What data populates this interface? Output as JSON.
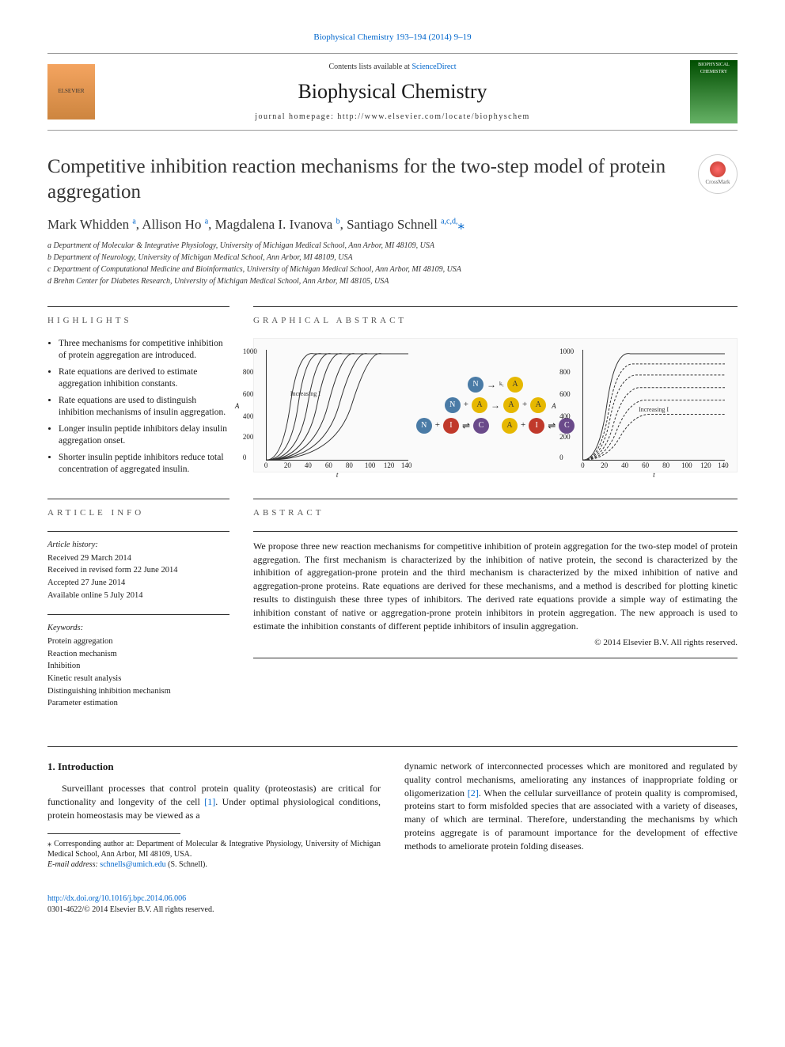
{
  "meta": {
    "top_citation": "Biophysical Chemistry 193–194 (2014) 9–19",
    "contents_prefix": "Contents lists available at ",
    "contents_link": "ScienceDirect",
    "journal_name": "Biophysical Chemistry",
    "homepage_label": "journal homepage: http://www.elsevier.com/locate/biophyschem",
    "elsevier_label": "ELSEVIER",
    "cover_label": "BIOPHYSICAL CHEMISTRY",
    "crossmark_label": "CrossMark"
  },
  "article": {
    "title": "Competitive inhibition reaction mechanisms for the two-step model of protein aggregation",
    "authors_html": "Mark Whidden <sup>a</sup>, Allison Ho <sup>a</sup>, Magdalena I. Ivanova <sup>b</sup>, Santiago Schnell <sup>a,c,d,</sup>",
    "corresponding_marker": "⁎",
    "affiliations": [
      "a Department of Molecular & Integrative Physiology, University of Michigan Medical School, Ann Arbor, MI 48109, USA",
      "b Department of Neurology, University of Michigan Medical School, Ann Arbor, MI 48109, USA",
      "c Department of Computational Medicine and Bioinformatics, University of Michigan Medical School, Ann Arbor, MI 48109, USA",
      "d Brehm Center for Diabetes Research, University of Michigan Medical School, Ann Arbor, MI 48105, USA"
    ]
  },
  "highlights": {
    "heading": "HIGHLIGHTS",
    "items": [
      "Three mechanisms for competitive inhibition of protein aggregation are introduced.",
      "Rate equations are derived to estimate aggregation inhibition constants.",
      "Rate equations are used to distinguish inhibition mechanisms of insulin aggregation.",
      "Longer insulin peptide inhibitors delay insulin aggregation onset.",
      "Shorter insulin peptide inhibitors reduce total concentration of aggregated insulin."
    ]
  },
  "graphical": {
    "heading": "GRAPHICAL ABSTRACT",
    "chart1": {
      "type": "line-sigmoid-family",
      "y_ticks": [
        "0",
        "200",
        "400",
        "600",
        "800",
        "1000"
      ],
      "x_ticks": [
        "0",
        "20",
        "40",
        "60",
        "80",
        "100",
        "120",
        "140"
      ],
      "y_label": "A",
      "x_label": "t",
      "arrow_label": "Increasing I",
      "curve_count": 7,
      "curve_color": "#333333",
      "xlim": [
        0,
        140
      ],
      "ylim": [
        0,
        1000
      ],
      "background_color": "#fafafa"
    },
    "mechanism": {
      "row1": {
        "left": "N",
        "rate": "k₁",
        "right": "A"
      },
      "row2": {
        "seq": [
          "N",
          "+",
          "A",
          "k₂→",
          "A",
          "+",
          "A"
        ]
      },
      "row3a": {
        "seq": [
          "N",
          "+",
          "I",
          "k₃⇌k₋₃",
          "C"
        ]
      },
      "row3b": {
        "seq": [
          "A",
          "+",
          "I",
          "k₄⇌k₋₄",
          "C"
        ]
      },
      "node_colors": {
        "N": "#4a7ba6",
        "A": "#e6b800",
        "I": "#c0392b",
        "C": "#6a4a8a"
      }
    },
    "chart2": {
      "type": "line-sigmoid-family-plateau",
      "y_ticks": [
        "0",
        "200",
        "400",
        "600",
        "800",
        "1000"
      ],
      "x_ticks": [
        "0",
        "20",
        "40",
        "60",
        "80",
        "100",
        "120",
        "140"
      ],
      "y_label": "A",
      "x_label": "t",
      "arrow_label": "Increasing I",
      "curve_count": 6,
      "curve_color": "#333333",
      "xlim": [
        0,
        140
      ],
      "ylim": [
        0,
        1000
      ],
      "background_color": "#fafafa"
    }
  },
  "article_info": {
    "heading": "ARTICLE INFO",
    "history_head": "Article history:",
    "history": [
      "Received 29 March 2014",
      "Received in revised form 22 June 2014",
      "Accepted 27 June 2014",
      "Available online 5 July 2014"
    ],
    "keywords_head": "Keywords:",
    "keywords": [
      "Protein aggregation",
      "Reaction mechanism",
      "Inhibition",
      "Kinetic result analysis",
      "Distinguishing inhibition mechanism",
      "Parameter estimation"
    ]
  },
  "abstract": {
    "heading": "ABSTRACT",
    "text": "We propose three new reaction mechanisms for competitive inhibition of protein aggregation for the two-step model of protein aggregation. The first mechanism is characterized by the inhibition of native protein, the second is characterized by the inhibition of aggregation-prone protein and the third mechanism is characterized by the mixed inhibition of native and aggregation-prone proteins. Rate equations are derived for these mechanisms, and a method is described for plotting kinetic results to distinguish these three types of inhibitors. The derived rate equations provide a simple way of estimating the inhibition constant of native or aggregation-prone protein inhibitors in protein aggregation. The new approach is used to estimate the inhibition constants of different peptide inhibitors of insulin aggregation.",
    "copyright": "© 2014 Elsevier B.V. All rights reserved."
  },
  "body": {
    "intro_heading": "1. Introduction",
    "col1_para": "Surveillant processes that control protein quality (proteostasis) are critical for functionality and longevity of the cell ",
    "col1_ref1": "[1]",
    "col1_para_tail": ". Under optimal physiological conditions, protein homeostasis may be viewed as a",
    "col2_para": "dynamic network of interconnected processes which are monitored and regulated by quality control mechanisms, ameliorating any instances of inappropriate folding or oligomerization ",
    "col2_ref2": "[2]",
    "col2_para_tail": ". When the cellular surveillance of protein quality is compromised, proteins start to form misfolded species that are associated with a variety of diseases, many of which are terminal. Therefore, understanding the mechanisms by which proteins aggregate is of paramount importance for the development of effective methods to ameliorate protein folding diseases."
  },
  "footnote": {
    "corr_text": "⁎ Corresponding author at: Department of Molecular & Integrative Physiology, University of Michigan Medical School, Ann Arbor, MI 48109, USA.",
    "email_label": "E-mail address: ",
    "email": "schnells@umich.edu",
    "email_tail": " (S. Schnell)."
  },
  "footer": {
    "doi": "http://dx.doi.org/10.1016/j.bpc.2014.06.006",
    "issn_line": "0301-4622/© 2014 Elsevier B.V. All rights reserved."
  }
}
